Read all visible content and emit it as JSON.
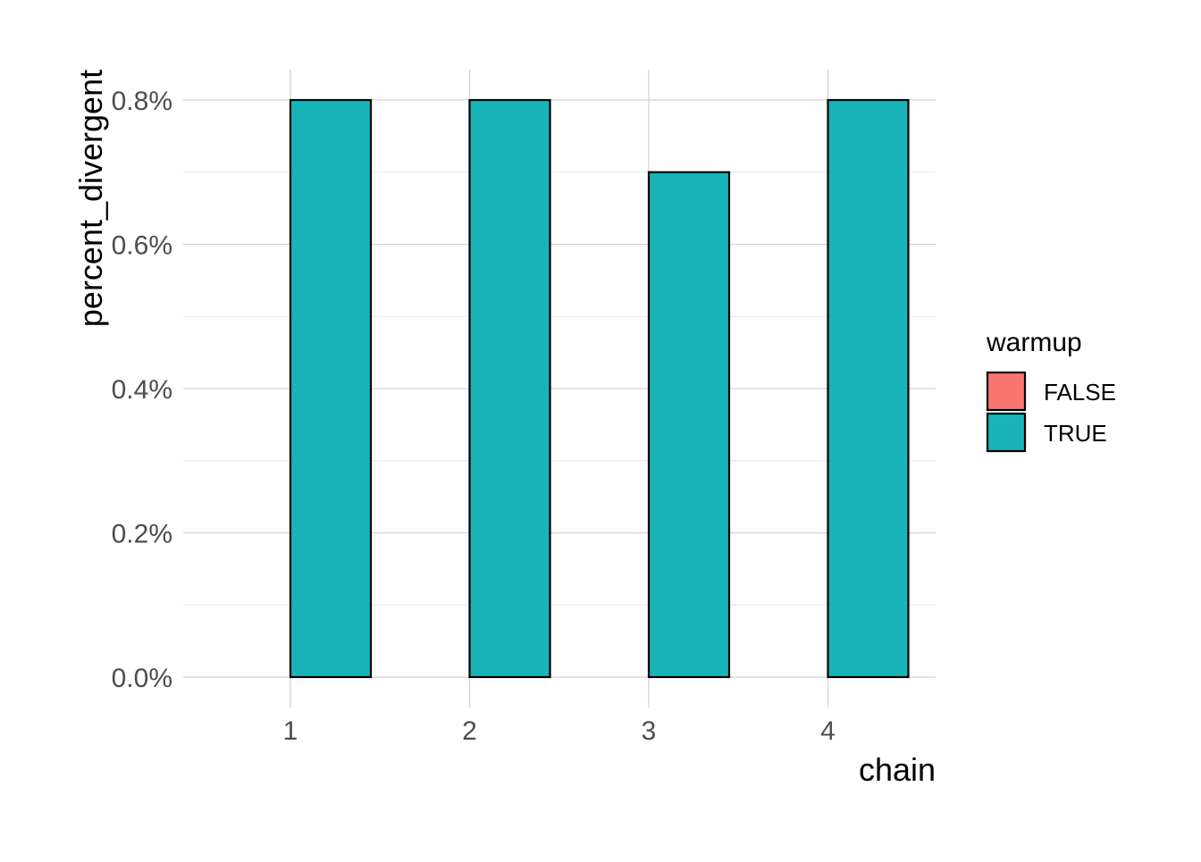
{
  "chart_data": {
    "type": "bar",
    "title": "",
    "xlabel": "chain",
    "ylabel": "percent_divergent",
    "categories": [
      "1",
      "2",
      "3",
      "4"
    ],
    "series": [
      {
        "name": "FALSE",
        "color": "#F8766D",
        "values": [
          0.0,
          0.0,
          0.0,
          0.0
        ]
      },
      {
        "name": "TRUE",
        "color": "#19B4B8",
        "values": [
          0.8,
          0.8,
          0.7,
          0.8
        ]
      }
    ],
    "ylim": [
      0,
      0.8
    ],
    "yticks": [
      0.0,
      0.2,
      0.4,
      0.6,
      0.8
    ],
    "ytick_labels": [
      "0.0%",
      "0.2%",
      "0.4%",
      "0.6%",
      "0.8%"
    ],
    "y_unit": "percent",
    "grid": true,
    "bar_layout": "dodged",
    "legend": {
      "title": "warmup",
      "position": "right",
      "entries": [
        "FALSE",
        "TRUE"
      ]
    }
  }
}
